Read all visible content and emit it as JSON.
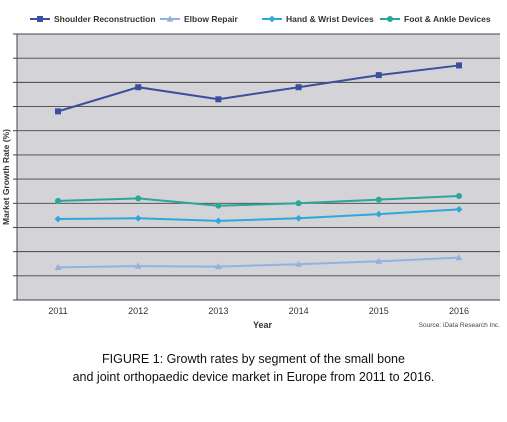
{
  "chart_data": {
    "type": "line",
    "title": "",
    "xlabel": "Year",
    "ylabel": "Market Growth Rate (%)",
    "categories": [
      "2011",
      "2012",
      "2013",
      "2014",
      "2015",
      "2016"
    ],
    "ylim": [
      0,
      11
    ],
    "y_tick_labels_shown": false,
    "grid": true,
    "legend_position": "top",
    "plot_background": "#d4d4d8",
    "series": [
      {
        "name": "Shoulder Reconstruction",
        "color": "#3b4f9e",
        "marker": "square",
        "values": [
          7.8,
          8.8,
          8.3,
          8.8,
          9.3,
          9.7
        ]
      },
      {
        "name": "Elbow Repair",
        "color": "#8fb3e0",
        "marker": "triangle",
        "values": [
          1.35,
          1.4,
          1.38,
          1.48,
          1.6,
          1.75
        ]
      },
      {
        "name": "Hand & Wrist Devices",
        "color": "#2ea8dc",
        "marker": "diamond",
        "values": [
          3.35,
          3.38,
          3.27,
          3.38,
          3.55,
          3.75
        ]
      },
      {
        "name": "Foot & Ankle Devices",
        "color": "#2aa69a",
        "marker": "circle",
        "values": [
          4.1,
          4.2,
          3.9,
          4.0,
          4.15,
          4.3
        ]
      }
    ],
    "source": "Source: iData Research Inc."
  },
  "caption": {
    "line1": "FIGURE 1: Growth rates by segment of the small bone",
    "line2": "and joint orthopaedic device market in Europe from 2011 to 2016."
  }
}
